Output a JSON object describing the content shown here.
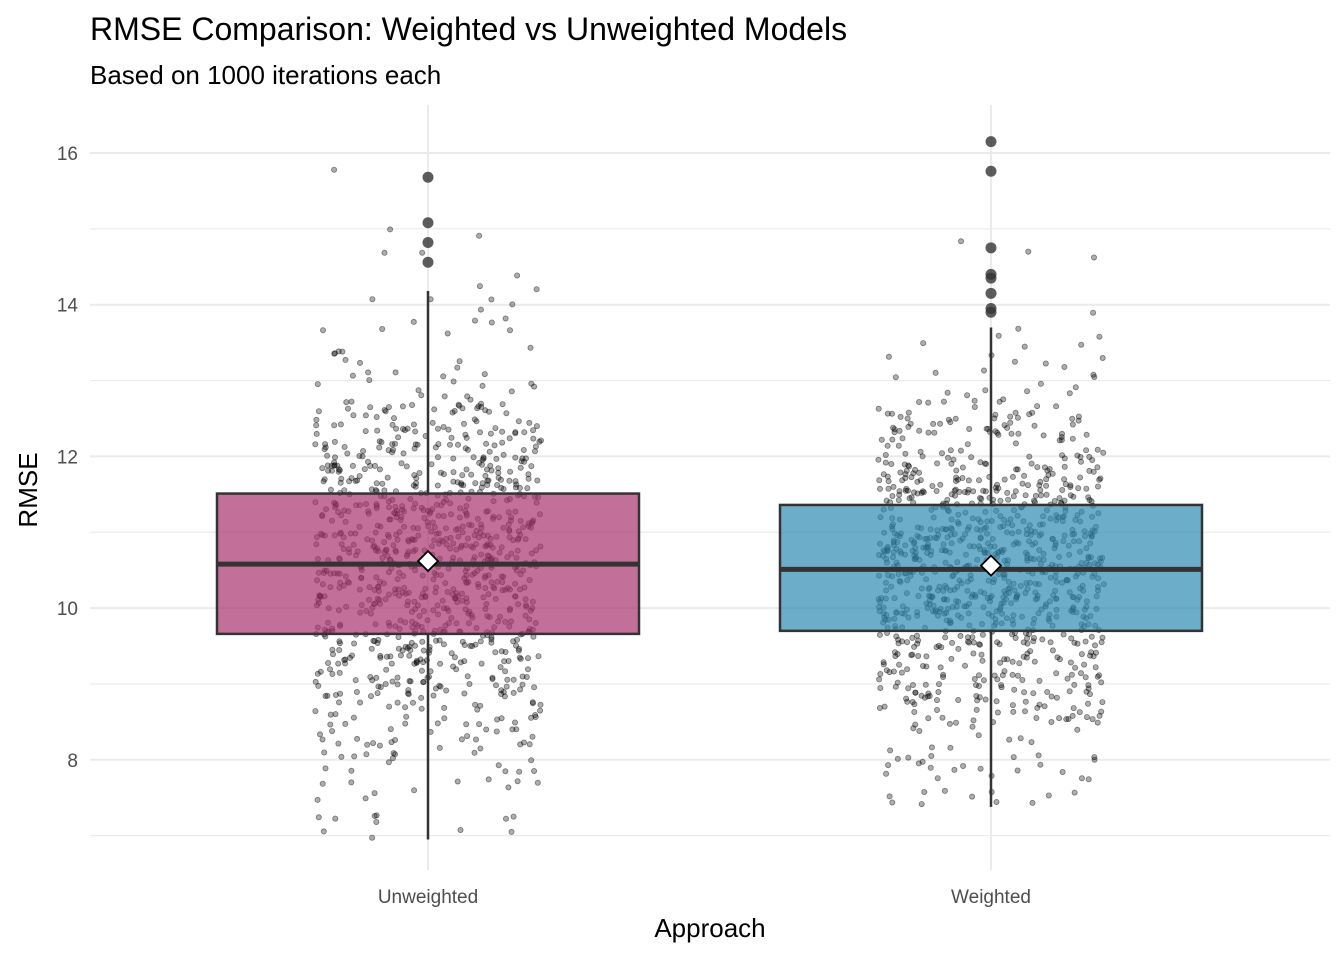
{
  "chart_data": {
    "type": "boxplot",
    "title": "RMSE Comparison: Weighted vs Unweighted Models",
    "subtitle": "Based on 1000 iterations each",
    "xlabel": "Approach",
    "ylabel": "RMSE",
    "ylim": [
      6.8,
      16.4
    ],
    "yticks": [
      8,
      10,
      12,
      14,
      16
    ],
    "grid": true,
    "legend": "none",
    "categories": [
      "Unweighted",
      "Weighted"
    ],
    "iterations_per_group": 1000,
    "groups": [
      {
        "name": "Unweighted",
        "color": "#a8336f",
        "q1": 9.66,
        "median": 10.58,
        "q3": 11.51,
        "mean": 10.62,
        "whisker_low": 6.95,
        "whisker_high": 14.18,
        "outliers": [
          15.68,
          15.08,
          14.82,
          14.56
        ]
      },
      {
        "name": "Weighted",
        "color": "#2e8cb3",
        "q1": 9.7,
        "median": 10.51,
        "q3": 11.36,
        "mean": 10.56,
        "whisker_low": 7.38,
        "whisker_high": 13.7,
        "outliers": [
          16.15,
          15.76,
          14.75,
          14.4,
          14.35,
          14.15,
          13.95,
          13.9
        ]
      }
    ]
  }
}
